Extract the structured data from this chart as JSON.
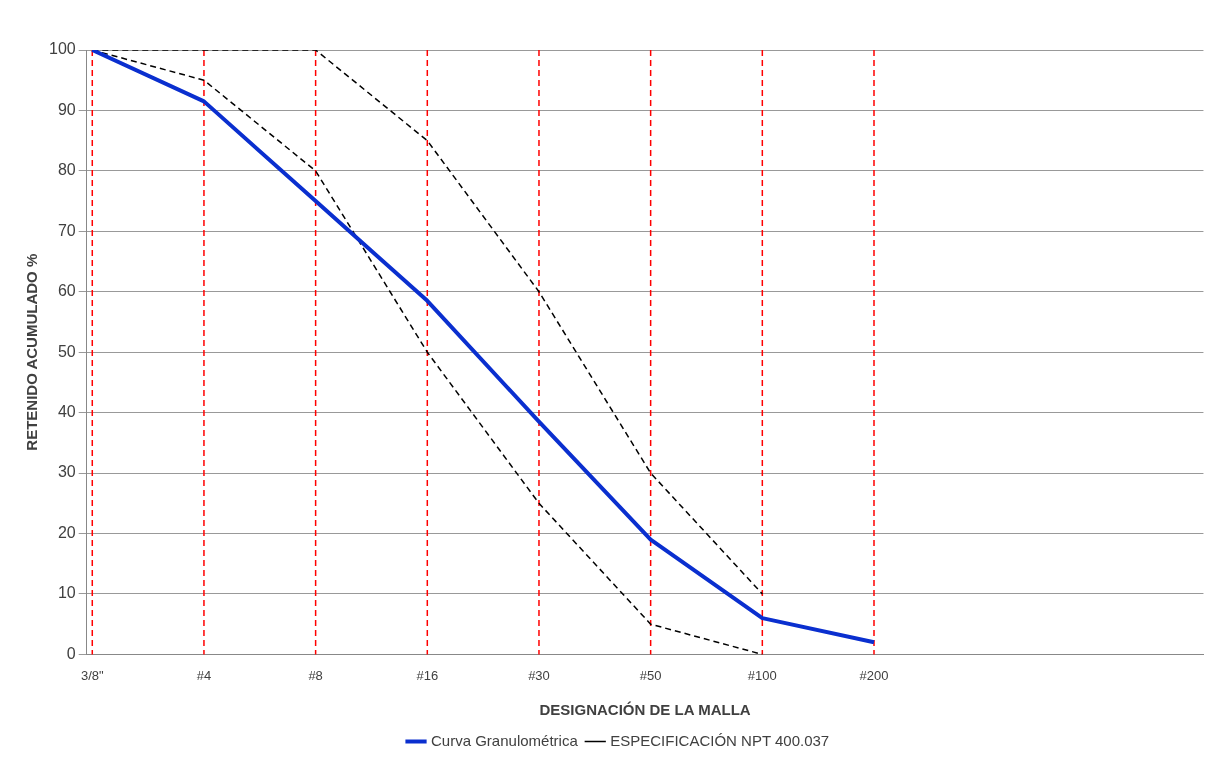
{
  "chart_data": {
    "type": "line",
    "xlabel": "DESIGNACIÓN DE LA MALLA",
    "ylabel": "RETENIDO ACUMULADO %",
    "categories": [
      "3/8\"",
      "#4",
      "#8",
      "#16",
      "#30",
      "#50",
      "#100",
      "#200",
      null,
      null,
      null
    ],
    "ylim": [
      0,
      100
    ],
    "yticks": [
      0,
      10,
      20,
      30,
      40,
      50,
      60,
      70,
      80,
      90,
      100
    ],
    "grid": "y",
    "legend": "bottom",
    "marker": "none",
    "series": [
      {
        "name": "Curva Granulométrica",
        "color": "#0a2fcf",
        "values": [
          100,
          91.5,
          75,
          58.5,
          38.5,
          19,
          6,
          2,
          null,
          null,
          null
        ],
        "line_style": "solid"
      },
      {
        "name": "ESPECIFICACIÓN NPT 400.037",
        "color": "#000000",
        "values": [
          100,
          100,
          100,
          85,
          60,
          30,
          10,
          null,
          null,
          null,
          null
        ],
        "line_style": "dashed"
      },
      {
        "color": "#000000",
        "values": [
          100,
          95,
          80,
          50,
          25,
          5,
          0,
          null,
          null,
          null,
          null
        ],
        "line_style": "dashed"
      }
    ],
    "ref_lines": [
      {
        "axis": "x",
        "value": "3/8\"",
        "color": "#ff0000",
        "line_style": "dashed"
      },
      {
        "axis": "x",
        "value": "#4",
        "color": "#ff0000",
        "line_style": "dashed"
      },
      {
        "axis": "x",
        "value": "#8",
        "color": "#ff0000",
        "line_style": "dashed"
      },
      {
        "axis": "x",
        "value": "#16",
        "color": "#ff0000",
        "line_style": "dashed"
      },
      {
        "axis": "x",
        "value": "#30",
        "color": "#ff0000",
        "line_style": "dashed"
      },
      {
        "axis": "x",
        "value": "#50",
        "color": "#ff0000",
        "line_style": "dashed"
      },
      {
        "axis": "x",
        "value": "#100",
        "color": "#ff0000",
        "line_style": "dashed"
      },
      {
        "axis": "x",
        "value": "#200",
        "color": "#ff0000",
        "line_style": "dashed"
      }
    ]
  }
}
